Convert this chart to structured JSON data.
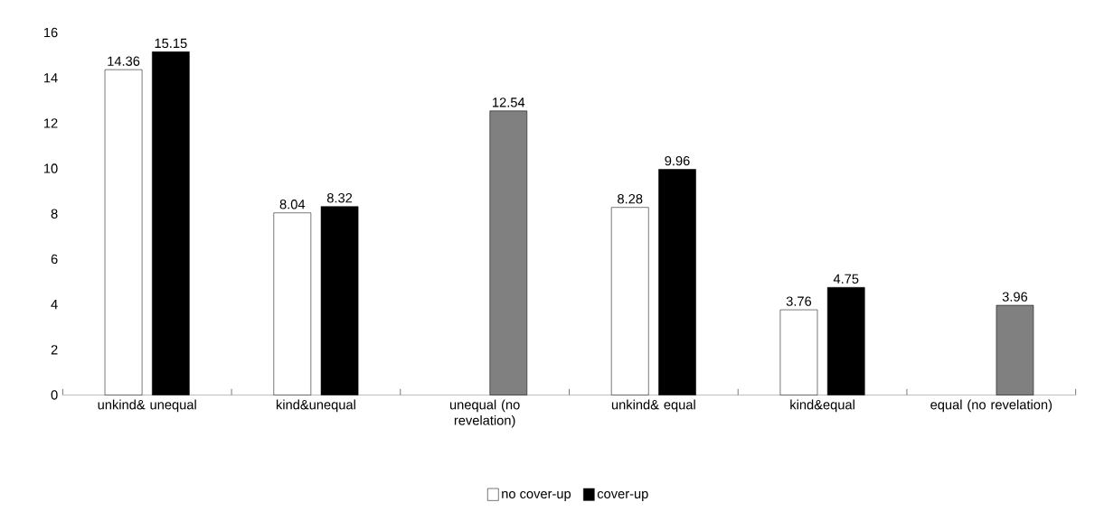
{
  "chart_data": {
    "type": "bar",
    "categories": [
      "unkind& unequal",
      "kind&unequal",
      "unequal (no revelation)",
      "unkind& equal",
      "kind&equal",
      "equal (no revelation)"
    ],
    "series": [
      {
        "name": "no cover-up",
        "color": "#ffffff",
        "values": [
          14.36,
          8.04,
          null,
          8.28,
          3.76,
          null
        ]
      },
      {
        "name": "cover-up",
        "color": "#000000",
        "colors": [
          "#000000",
          "#000000",
          "#808080",
          "#000000",
          "#000000",
          "#808080"
        ],
        "values": [
          15.15,
          8.32,
          12.54,
          9.96,
          4.75,
          3.96
        ]
      }
    ],
    "ylim": [
      0,
      16
    ],
    "yticks": [
      0,
      2,
      4,
      6,
      8,
      10,
      12,
      14,
      16
    ],
    "data_labels": true,
    "legend": "bottom"
  }
}
